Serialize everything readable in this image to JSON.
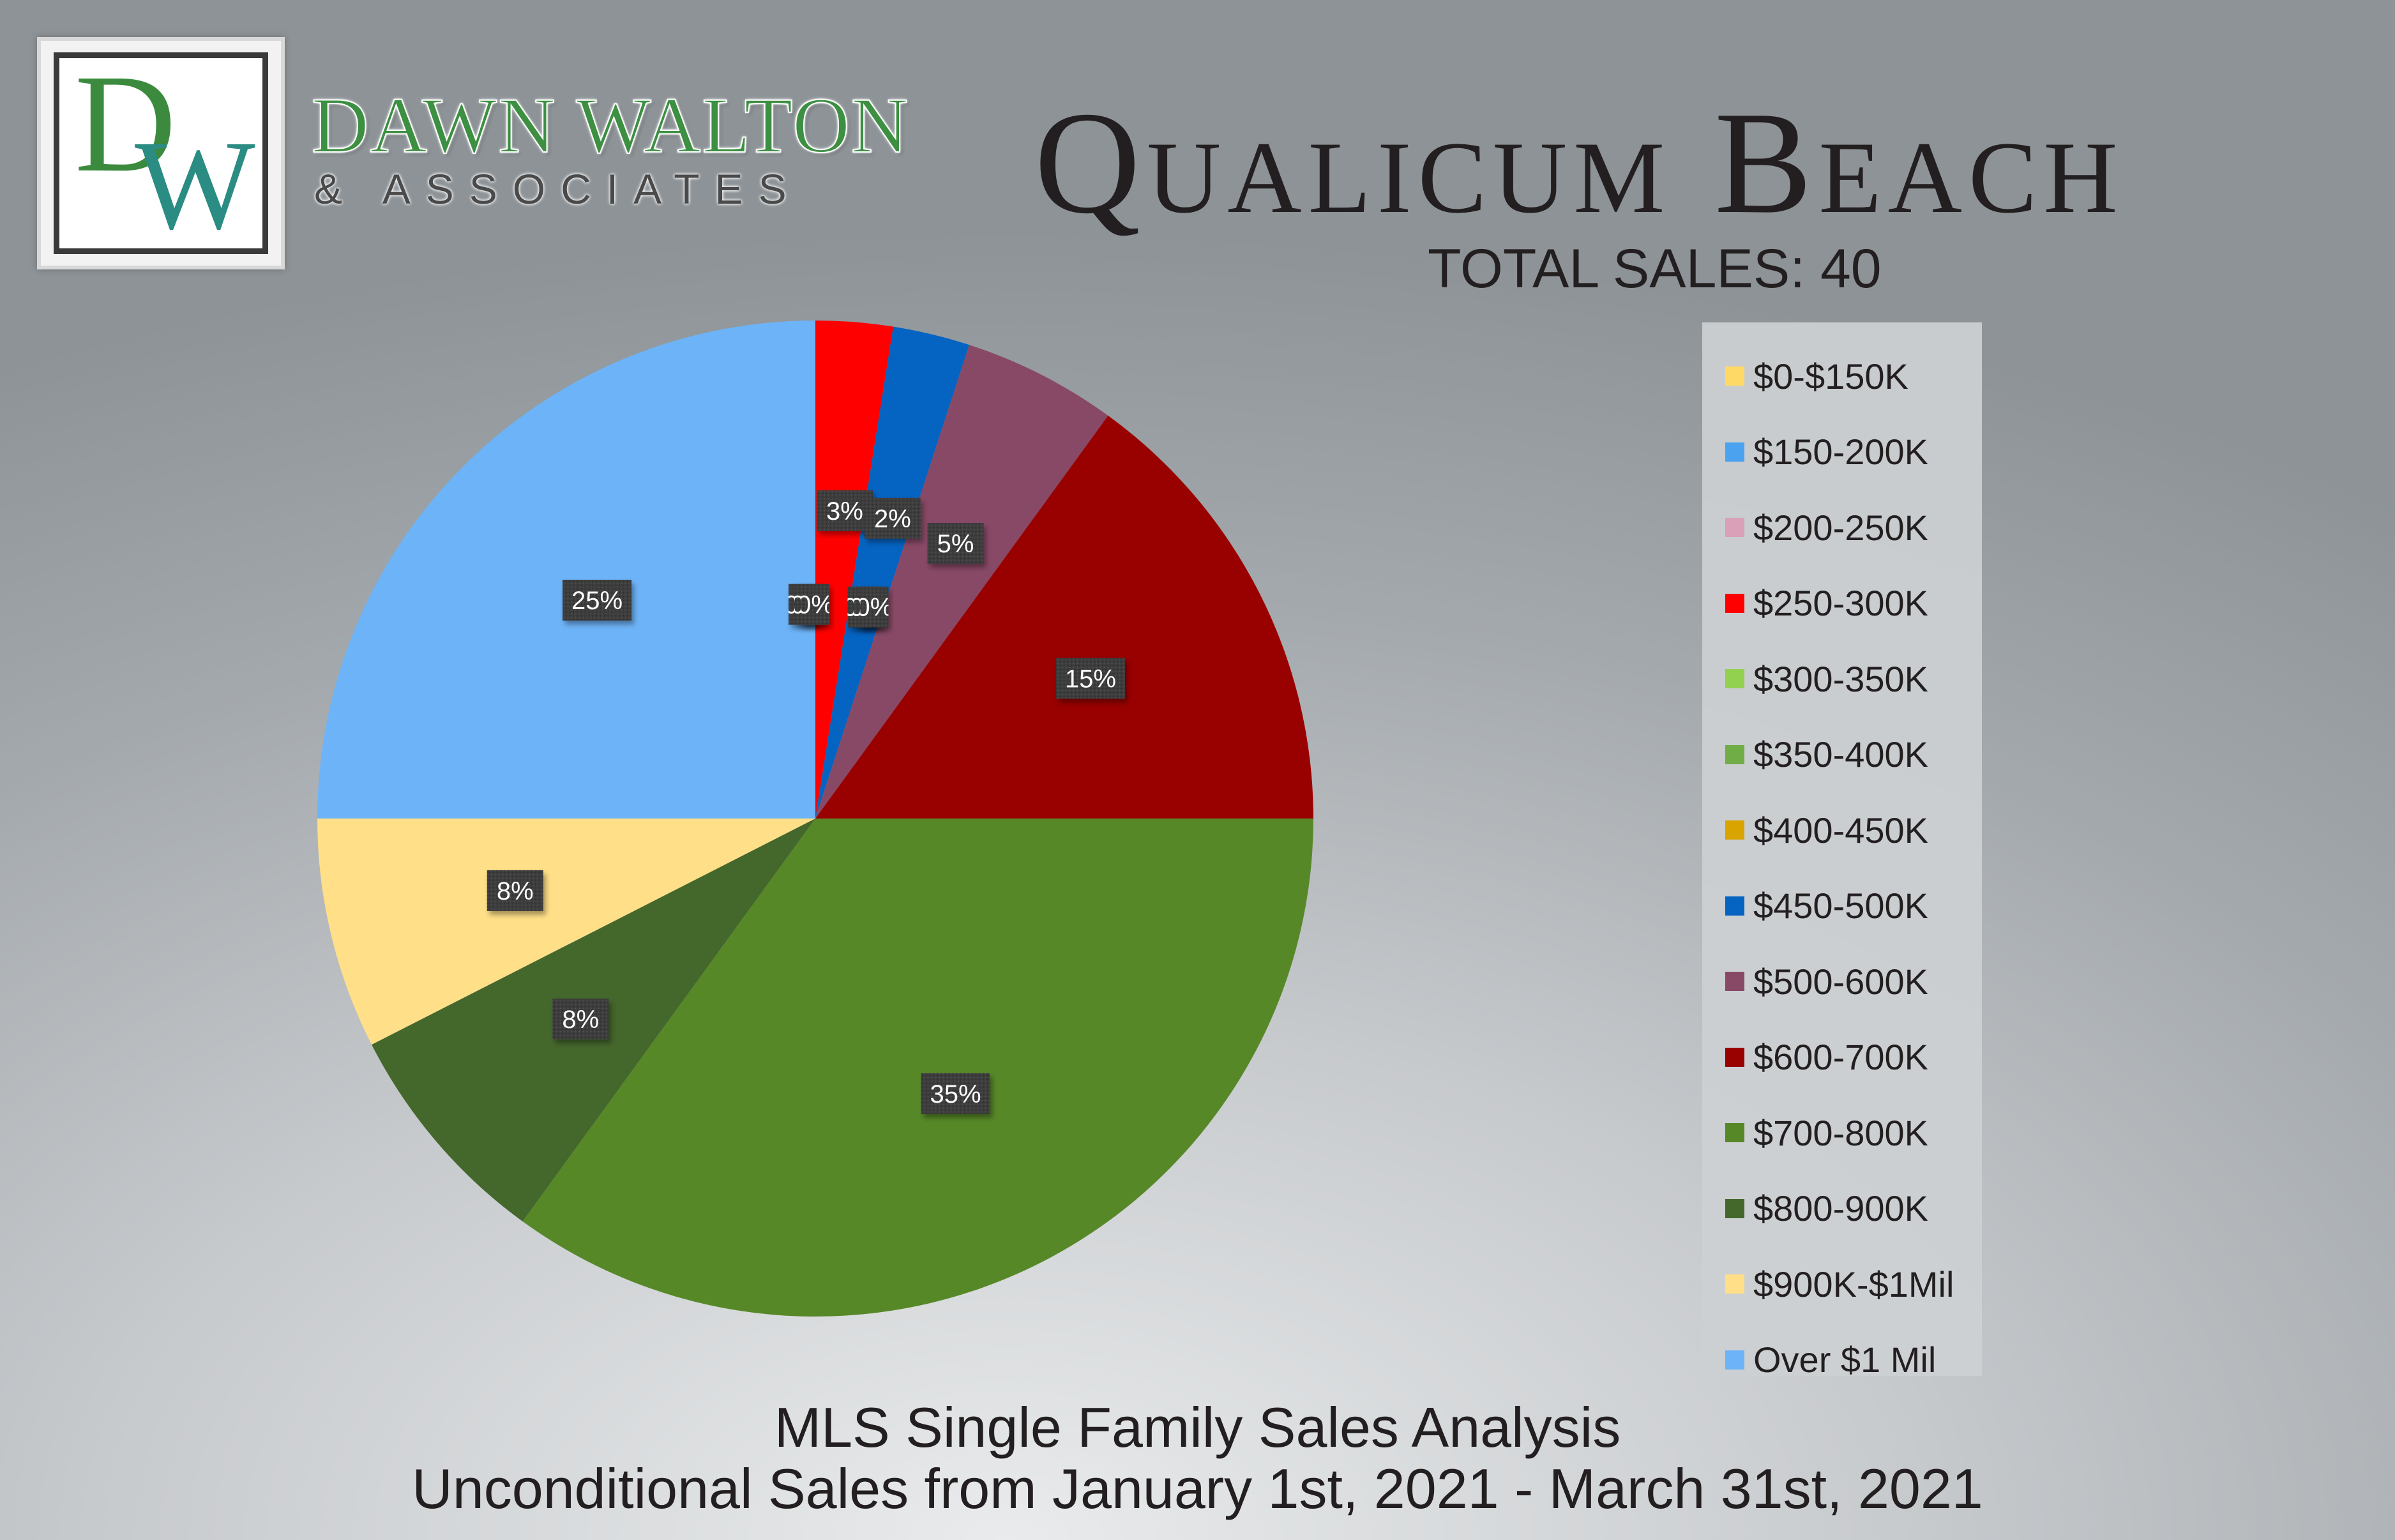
{
  "logo": {
    "monogram_d": "D",
    "monogram_w": "W",
    "name": "DAWN WALTON",
    "sub": "& ASSOCIATES"
  },
  "header": {
    "title": "Qualicum Beach",
    "total_sales": "TOTAL SALES: 40"
  },
  "footer": {
    "line1": "MLS Single Family Sales Analysis",
    "line2": "Unconditional Sales from January 1st, 2021 - March 31st, 2021"
  },
  "chart_data": {
    "type": "pie",
    "title": "Qualicum Beach",
    "start_angle_deg": 0,
    "legend_position": "right",
    "slices": [
      {
        "label": "$0-$150K",
        "value": 0,
        "display": "0%",
        "color": "#ffd966"
      },
      {
        "label": "$150-200K",
        "value": 0,
        "display": "0%",
        "color": "#4ba3f0"
      },
      {
        "label": "$200-250K",
        "value": 0,
        "display": "0%",
        "color": "#d9a0b8"
      },
      {
        "label": "$250-300K",
        "value": 2.5,
        "display": "3%",
        "color": "#ff0000"
      },
      {
        "label": "$300-350K",
        "value": 0,
        "display": "0%",
        "color": "#92d050"
      },
      {
        "label": "$350-400K",
        "value": 0,
        "display": "0%",
        "color": "#70ad47"
      },
      {
        "label": "$400-450K",
        "value": 0,
        "display": "0%",
        "color": "#d9a300"
      },
      {
        "label": "$450-500K",
        "value": 2.5,
        "display": "2%",
        "color": "#0563c1"
      },
      {
        "label": "$500-600K",
        "value": 5,
        "display": "5%",
        "color": "#884966"
      },
      {
        "label": "$600-700K",
        "value": 15,
        "display": "15%",
        "color": "#990000"
      },
      {
        "label": "$700-800K",
        "value": 35,
        "display": "35%",
        "color": "#578828"
      },
      {
        "label": "$800-900K",
        "value": 7.5,
        "display": "8%",
        "color": "#44672c"
      },
      {
        "label": "$900K-$1Mil",
        "value": 7.5,
        "display": "8%",
        "color": "#ffdf88"
      },
      {
        "label": "Over $1 Mil",
        "value": 25,
        "display": "25%",
        "color": "#6db3f7"
      }
    ]
  }
}
